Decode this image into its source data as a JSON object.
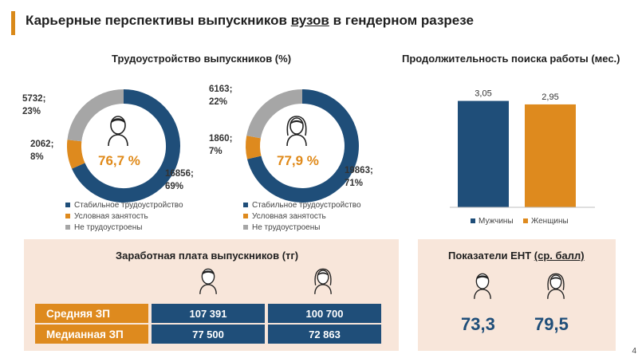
{
  "page": {
    "title_pre": "Карьерные перспективы выпускников ",
    "title_u": "вузов",
    "title_post": " в гендерном разрезе",
    "page_number": "4"
  },
  "colors": {
    "navy": "#1f4e79",
    "orange": "#de8a1e",
    "grey": "#a6a6a6",
    "accent": "#d98919",
    "panel": "#f8e6da"
  },
  "employment": {
    "title": "Трудоустройство выпускников (%)",
    "legend": [
      "Стабильное трудоустройство",
      "Условная занятость",
      "Не трудоустроены"
    ],
    "male": {
      "center_pct": "76,7 %",
      "labels": {
        "stable": [
          "16856;",
          "69%"
        ],
        "conditional": [
          "2062;",
          "8%"
        ],
        "unemployed": [
          "5732;",
          "23%"
        ]
      }
    },
    "female": {
      "center_pct": "77,9 %",
      "labels": {
        "stable": [
          "19863;",
          "71%"
        ],
        "conditional": [
          "1860;",
          "7%"
        ],
        "unemployed": [
          "6163;",
          "22%"
        ]
      }
    }
  },
  "search": {
    "title": "Продолжительность поиска работы (мес.)"
  },
  "salary": {
    "title": "Заработная плата выпускников (тг)",
    "rows": [
      {
        "label": "Средняя ЗП",
        "male": "107 391",
        "female": "100 700"
      },
      {
        "label": "Медианная ЗП",
        "male": "77 500",
        "female": "72 863"
      }
    ]
  },
  "ent": {
    "title_pre": "Показатели ЕНТ ",
    "title_u": "(ср. балл)",
    "male": "73,3",
    "female": "79,5"
  },
  "chart_data": [
    {
      "type": "pie",
      "title": "",
      "labels": [
        "Стабильное трудоустройство",
        "Условная занятость",
        "Не трудоустроены"
      ],
      "values": [
        16856,
        2062,
        5732
      ],
      "percent": [
        69,
        8,
        23
      ]
    },
    {
      "type": "pie",
      "title": "",
      "labels": [
        "Стабильное трудоустройство",
        "Условная занятость",
        "Не трудоустроены"
      ],
      "values": [
        19863,
        1860,
        6163
      ],
      "percent": [
        71,
        7,
        22
      ]
    },
    {
      "type": "bar",
      "title": "Продолжительность поиска работы (мес.)",
      "categories": [
        "Мужчины",
        "Женщины"
      ],
      "values": [
        3.05,
        2.95
      ],
      "value_labels": [
        "3,05",
        "2,95"
      ],
      "colors": [
        "#1f4e79",
        "#de8a1e"
      ],
      "ylim": [
        0,
        3.2
      ],
      "legend": "bottom"
    }
  ]
}
